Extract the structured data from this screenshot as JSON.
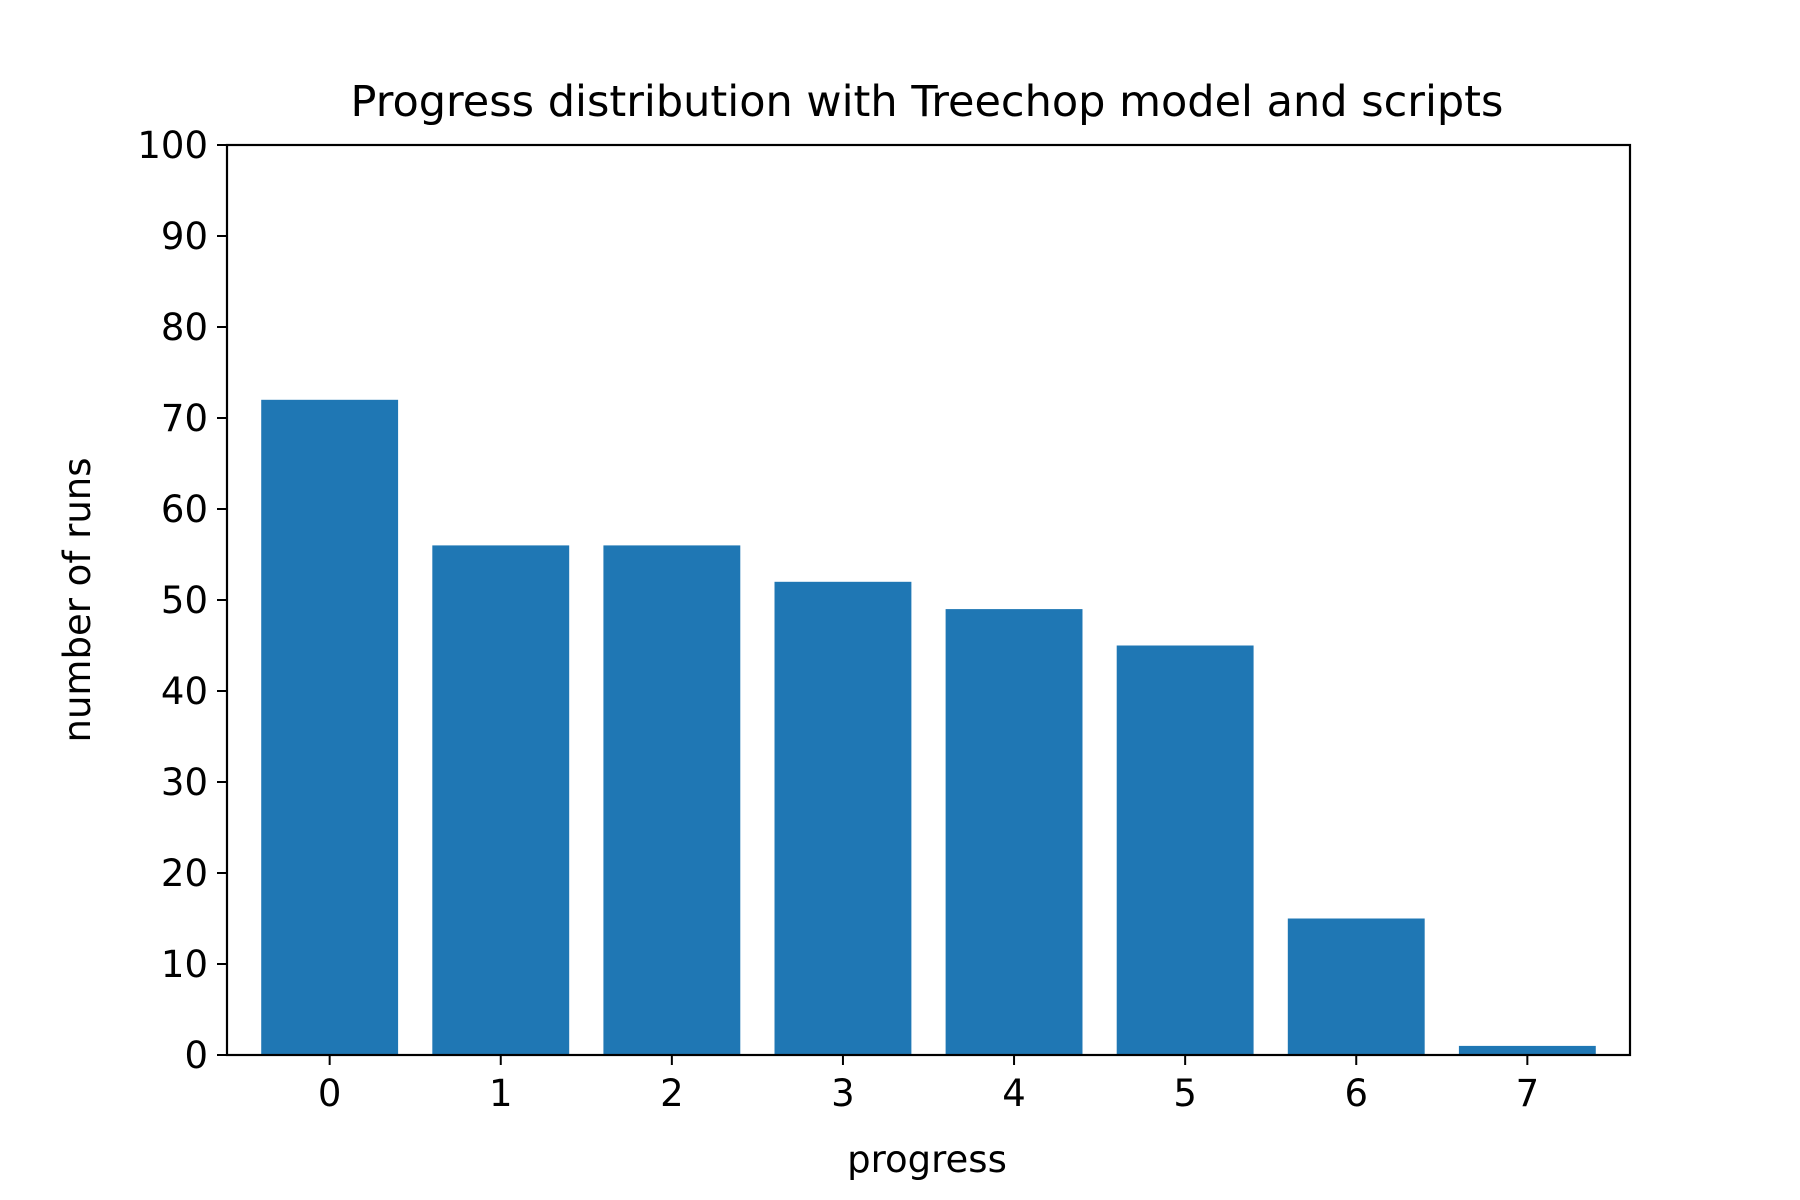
{
  "chart_data": {
    "type": "bar",
    "title": "Progress distribution with Treechop model and scripts",
    "xlabel": "progress",
    "ylabel": "number of runs",
    "categories": [
      "0",
      "1",
      "2",
      "3",
      "4",
      "5",
      "6",
      "7"
    ],
    "values": [
      72,
      56,
      56,
      52,
      49,
      45,
      15,
      1
    ],
    "ylim": [
      0,
      100
    ],
    "yticks": [
      "0",
      "10",
      "20",
      "30",
      "40",
      "50",
      "60",
      "70",
      "80",
      "90",
      "100"
    ],
    "grid": false,
    "legend": "none",
    "colors": {
      "bar": "#1f77b4",
      "axis": "#000000",
      "background": "#ffffff"
    }
  }
}
